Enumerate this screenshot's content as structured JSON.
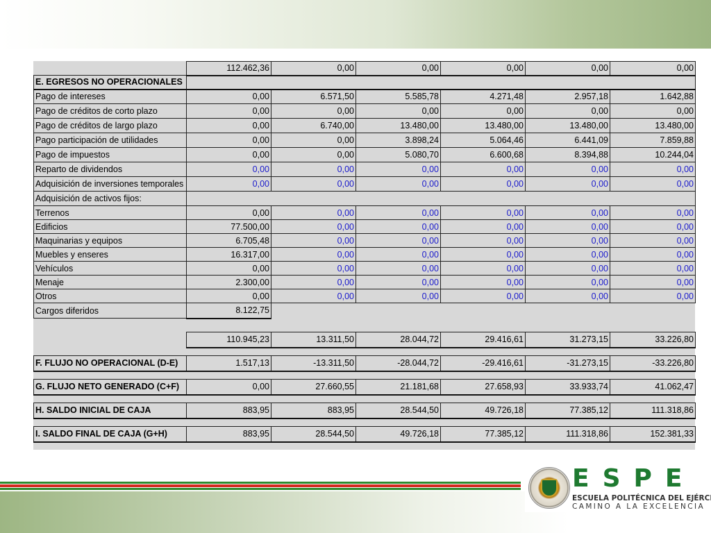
{
  "table": {
    "top_row": {
      "label": "",
      "values": [
        "112.462,36",
        "0,00",
        "0,00",
        "0,00",
        "0,00",
        "0,00"
      ]
    },
    "section_e": "E. EGRESOS NO OPERACIONALES",
    "egresos": [
      {
        "label": "Pago de intereses",
        "values": [
          "0,00",
          "6.571,50",
          "5.585,78",
          "4.271,48",
          "2.957,18",
          "1.642,88"
        ],
        "blue": false
      },
      {
        "label": "Pago de créditos de corto plazo",
        "values": [
          "0,00",
          "0,00",
          "0,00",
          "0,00",
          "0,00",
          "0,00"
        ],
        "blue": false
      },
      {
        "label": "Pago de créditos de largo plazo",
        "values": [
          "0,00",
          "6.740,00",
          "13.480,00",
          "13.480,00",
          "13.480,00",
          "13.480,00"
        ],
        "blue": false
      },
      {
        "label": "Pago participación de utilidades",
        "values": [
          "0,00",
          "0,00",
          "3.898,24",
          "5.064,46",
          "6.441,09",
          "7.859,88"
        ],
        "blue": false
      },
      {
        "label": "Pago de impuestos",
        "values": [
          "0,00",
          "0,00",
          "5.080,70",
          "6.600,68",
          "8.394,88",
          "10.244,04"
        ],
        "blue": false
      },
      {
        "label": "Reparto de dividendos",
        "values": [
          "0,00",
          "0,00",
          "0,00",
          "0,00",
          "0,00",
          "0,00"
        ],
        "blue": true
      },
      {
        "label": "Adquisición de inversiones temporales",
        "values": [
          "0,00",
          "0,00",
          "0,00",
          "0,00",
          "0,00",
          "0,00"
        ],
        "blue": true
      }
    ],
    "activos_header": "Adquisición de activos fijos:",
    "activos": [
      {
        "label": "Terrenos",
        "values": [
          "0,00",
          "0,00",
          "0,00",
          "0,00",
          "0,00",
          "0,00"
        ]
      },
      {
        "label": "Edificios",
        "values": [
          "77.500,00",
          "0,00",
          "0,00",
          "0,00",
          "0,00",
          "0,00"
        ]
      },
      {
        "label": "Maquinarias y equipos",
        "values": [
          "6.705,48",
          "0,00",
          "0,00",
          "0,00",
          "0,00",
          "0,00"
        ]
      },
      {
        "label": "Muebles y enseres",
        "values": [
          "16.317,00",
          "0,00",
          "0,00",
          "0,00",
          "0,00",
          "0,00"
        ]
      },
      {
        "label": "Vehículos",
        "values": [
          "0,00",
          "0,00",
          "0,00",
          "0,00",
          "0,00",
          "0,00"
        ]
      },
      {
        "label": "Menaje",
        "values": [
          "2.300,00",
          "0,00",
          "0,00",
          "0,00",
          "0,00",
          "0,00"
        ]
      },
      {
        "label": "Otros",
        "values": [
          "0,00",
          "0,00",
          "0,00",
          "0,00",
          "0,00",
          "0,00"
        ]
      }
    ],
    "cargos": {
      "label": "Cargos diferidos",
      "value": "8.122,75"
    },
    "total_egresos": [
      "110.945,23",
      "13.311,50",
      "28.044,72",
      "29.416,61",
      "31.273,15",
      "33.226,80"
    ],
    "summary": [
      {
        "label": "F. FLUJO NO OPERACIONAL (D-E)",
        "values": [
          "1.517,13",
          "-13.311,50",
          "-28.044,72",
          "-29.416,61",
          "-31.273,15",
          "-33.226,80"
        ]
      },
      {
        "label": "G. FLUJO NETO GENERADO (C+F)",
        "values": [
          "0,00",
          "27.660,55",
          "21.181,68",
          "27.658,93",
          "33.933,74",
          "41.062,47"
        ]
      },
      {
        "label": "H. SALDO INICIAL DE CAJA",
        "values": [
          "883,95",
          "883,95",
          "28.544,50",
          "49.726,18",
          "77.385,12",
          "111.318,86"
        ]
      },
      {
        "label": "I. SALDO FINAL DE CAJA (G+H)",
        "values": [
          "883,95",
          "28.544,50",
          "49.726,18",
          "77.385,12",
          "111.318,86",
          "152.381,33"
        ]
      }
    ]
  },
  "logo": {
    "word": "ESPE",
    "line1": "ESCUELA POLITÉCNICA DEL EJÉRCITO",
    "line2": "CAMINO A LA EXCELENCIA",
    "seal_icon": "espe-seal-icon"
  },
  "colors": {
    "blue_values": "#1a1acc",
    "brand_green": "#1e7a30",
    "stripe_red": "#d42a20"
  }
}
